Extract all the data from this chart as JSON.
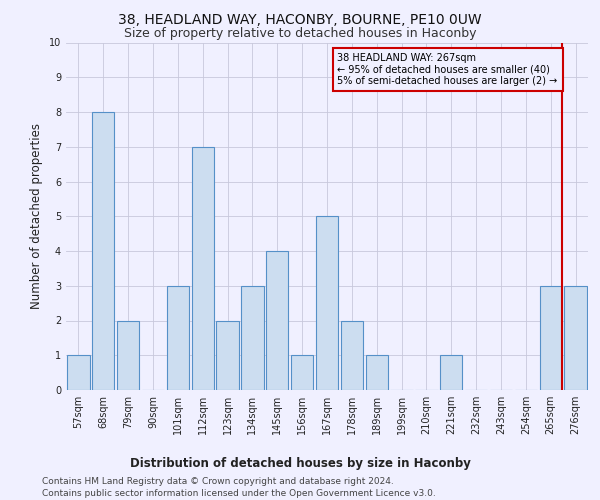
{
  "title": "38, HEADLAND WAY, HACONBY, BOURNE, PE10 0UW",
  "subtitle": "Size of property relative to detached houses in Haconby",
  "xlabel": "Distribution of detached houses by size in Haconby",
  "ylabel": "Number of detached properties",
  "categories": [
    "57sqm",
    "68sqm",
    "79sqm",
    "90sqm",
    "101sqm",
    "112sqm",
    "123sqm",
    "134sqm",
    "145sqm",
    "156sqm",
    "167sqm",
    "178sqm",
    "189sqm",
    "199sqm",
    "210sqm",
    "221sqm",
    "232sqm",
    "243sqm",
    "254sqm",
    "265sqm",
    "276sqm"
  ],
  "values": [
    1,
    8,
    2,
    0,
    3,
    7,
    2,
    3,
    4,
    1,
    5,
    2,
    1,
    0,
    0,
    1,
    0,
    0,
    0,
    3,
    3
  ],
  "bar_color": "#ccddf0",
  "bar_edge_color": "#5590c8",
  "subject_line_color": "#cc0000",
  "annotation_text": "38 HEADLAND WAY: 267sqm\n← 95% of detached houses are smaller (40)\n5% of semi-detached houses are larger (2) →",
  "annotation_box_color": "#cc0000",
  "ylim": [
    0,
    10
  ],
  "yticks": [
    0,
    1,
    2,
    3,
    4,
    5,
    6,
    7,
    8,
    9,
    10
  ],
  "footer_line1": "Contains HM Land Registry data © Crown copyright and database right 2024.",
  "footer_line2": "Contains public sector information licensed under the Open Government Licence v3.0.",
  "bg_color": "#f0f0ff",
  "grid_color": "#c8c8dc",
  "title_fontsize": 10,
  "subtitle_fontsize": 9,
  "axis_label_fontsize": 8.5,
  "tick_fontsize": 7,
  "footer_fontsize": 6.5
}
